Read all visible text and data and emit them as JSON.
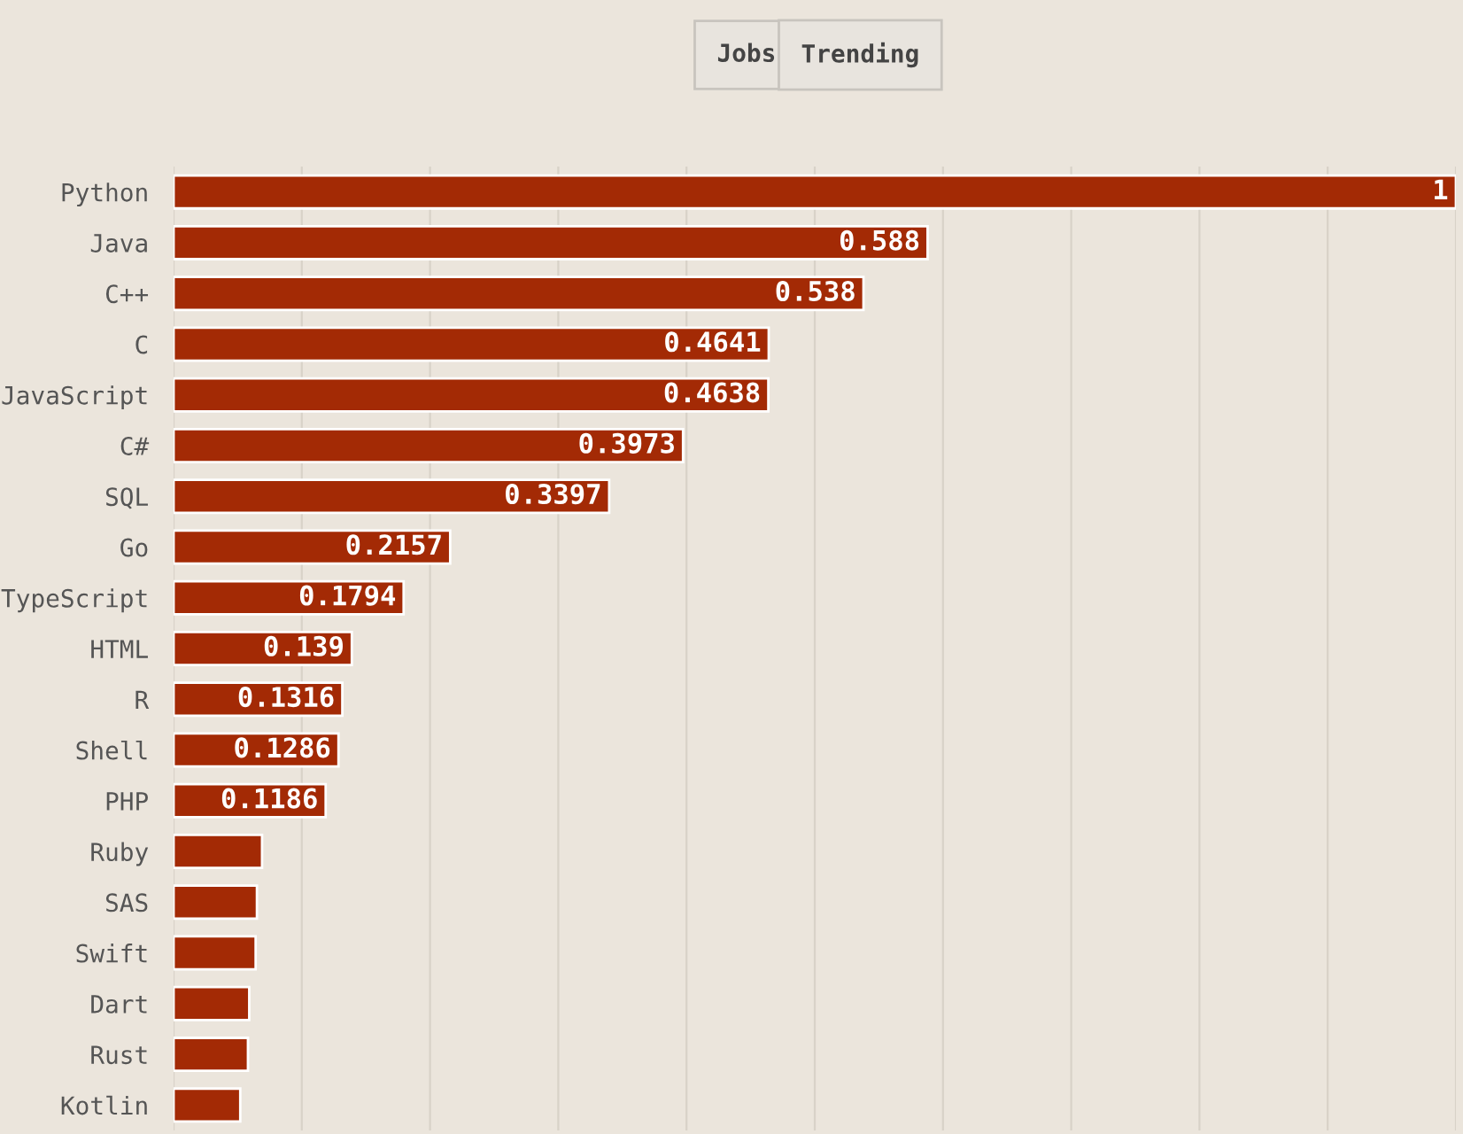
{
  "chart_data": {
    "type": "bar",
    "orientation": "horizontal",
    "categories": [
      "Python",
      "Java",
      "C++",
      "C",
      "JavaScript",
      "C#",
      "SQL",
      "Go",
      "TypeScript",
      "HTML",
      "R",
      "Shell",
      "PHP",
      "Ruby",
      "SAS",
      "Swift",
      "Dart",
      "Rust",
      "Kotlin"
    ],
    "values": [
      1,
      0.588,
      0.538,
      0.4641,
      0.4638,
      0.3973,
      0.3397,
      0.2157,
      0.1794,
      0.139,
      0.1316,
      0.1286,
      0.1186,
      0.069,
      0.065,
      0.064,
      0.059,
      0.058,
      0.052
    ],
    "value_labels": [
      "1",
      "0.588",
      "0.538",
      "0.4641",
      "0.4638",
      "0.3973",
      "0.3397",
      "0.2157",
      "0.1794",
      "0.139",
      "0.1316",
      "0.1286",
      "0.1186",
      null,
      null,
      null,
      null,
      null,
      null
    ],
    "color": "#a32a05",
    "xlim": [
      0,
      1
    ],
    "xticks": [
      {
        "value": 0,
        "label": null
      },
      {
        "value": 0.1,
        "label": null
      },
      {
        "value": 0.2,
        "label": null
      },
      {
        "value": 0.3,
        "label": null
      },
      {
        "value": 0.4,
        "label": null
      },
      {
        "value": 0.5,
        "label": null
      },
      {
        "value": 0.6,
        "label": null
      },
      {
        "value": 0.7,
        "label": null
      },
      {
        "value": 0.8,
        "label": null
      },
      {
        "value": 0.9,
        "label": null
      },
      {
        "value": 1,
        "label": null
      }
    ],
    "grid": "x",
    "tick_labels": "y",
    "annotations": [
      "Jobs",
      "Trending"
    ]
  }
}
